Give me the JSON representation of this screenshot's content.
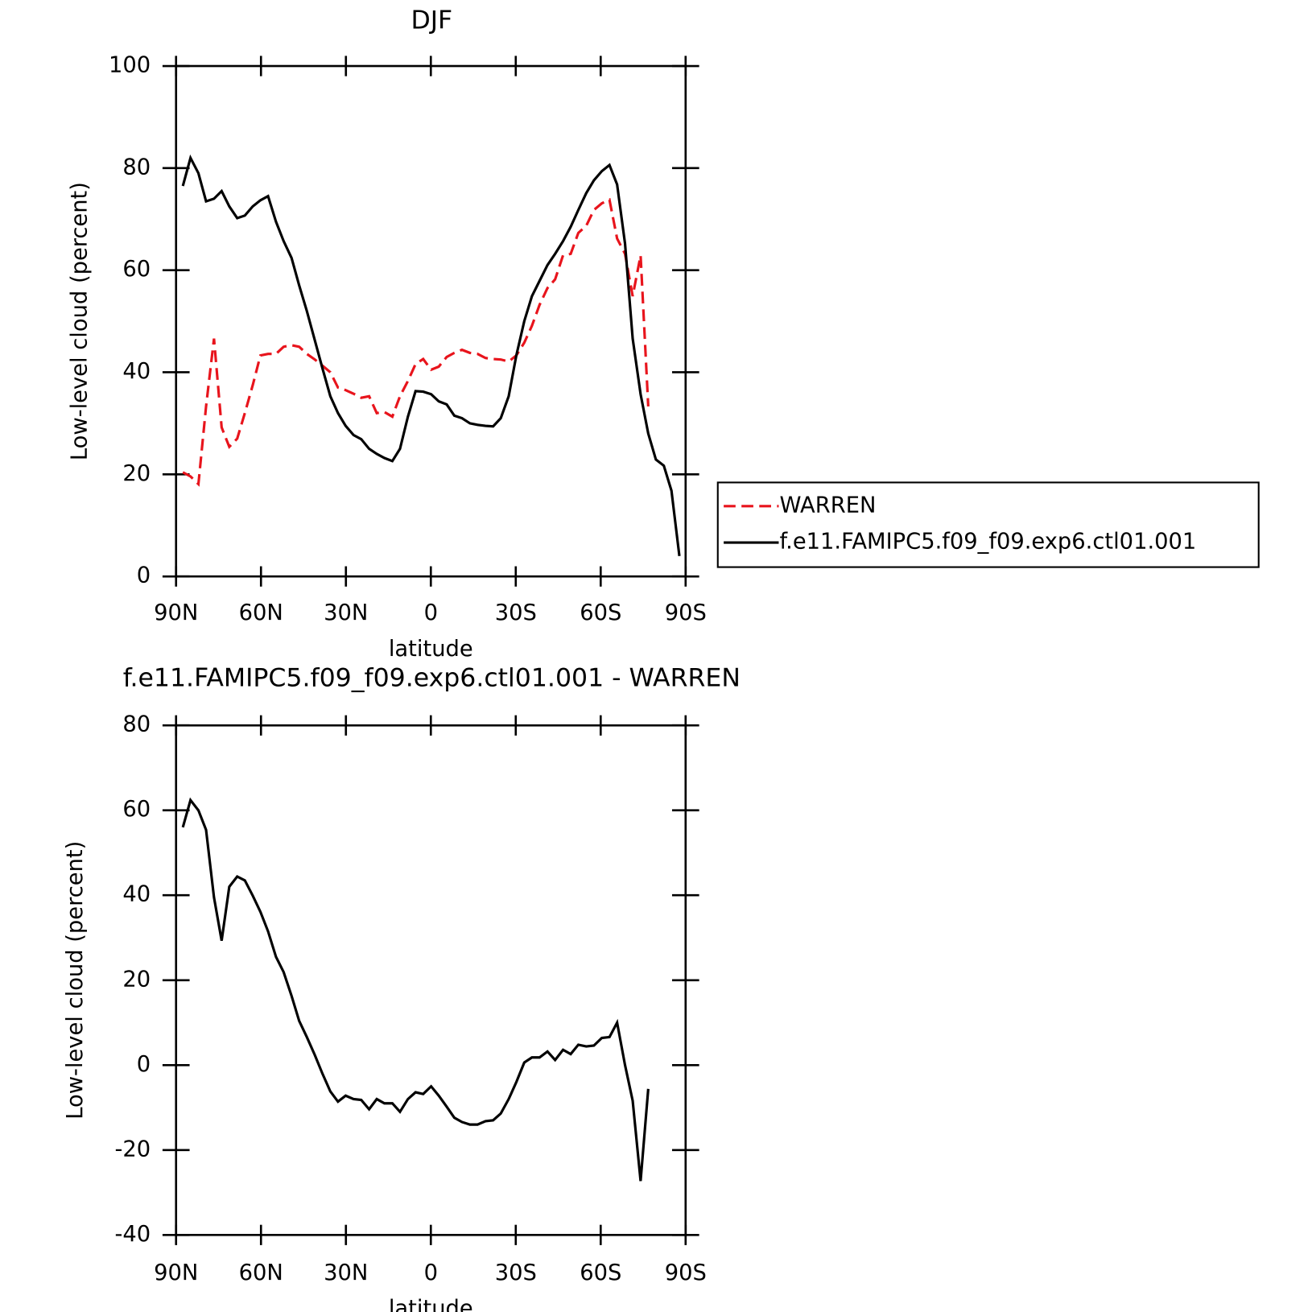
{
  "chart_data": [
    {
      "type": "line",
      "title": "DJF",
      "x_label": "latitude",
      "y_label": "Low-level cloud (percent)",
      "xlim": [
        90,
        -90
      ],
      "ylim": [
        0,
        100
      ],
      "xticks": [
        {
          "value": 90,
          "label": "90N"
        },
        {
          "value": 60,
          "label": "60N"
        },
        {
          "value": 30,
          "label": "30N"
        },
        0,
        {
          "value": -30,
          "label": "30S"
        },
        {
          "value": -60,
          "label": "60S"
        },
        {
          "value": -90,
          "label": "90S"
        }
      ],
      "yticks": [
        0,
        20,
        40,
        60,
        80,
        100
      ],
      "legend": "right",
      "x": [
        87.6,
        84.9,
        82.1,
        79.4,
        76.6,
        73.9,
        71.2,
        68.4,
        65.7,
        62.9,
        60.2,
        57.5,
        54.7,
        52.0,
        49.2,
        46.5,
        43.8,
        41.0,
        38.3,
        35.5,
        32.8,
        30.1,
        27.3,
        24.6,
        21.8,
        19.1,
        16.4,
        13.6,
        10.9,
        8.1,
        5.4,
        2.7,
        -0.1,
        -2.8,
        -5.6,
        -8.3,
        -11.0,
        -13.8,
        -16.5,
        -19.3,
        -22.0,
        -24.7,
        -27.5,
        -30.2,
        -33.0,
        -35.7,
        -38.4,
        -41.2,
        -43.9,
        -46.7,
        -49.4,
        -52.1,
        -54.9,
        -57.6,
        -60.4,
        -63.1,
        -65.8,
        -68.6,
        -71.3,
        -74.1,
        -76.8,
        -79.5,
        -82.3,
        -85.0,
        -87.8
      ],
      "series": [
        {
          "name": "WARREN",
          "color": "#e8141c",
          "linestyle": "dashed",
          "values": [
            20.4,
            19.6,
            18.1,
            33.3,
            46.6,
            29.2,
            25.4,
            27,
            32,
            37.5,
            43.3,
            43.6,
            43.6,
            45,
            45.3,
            45,
            43.6,
            42.5,
            41.3,
            40,
            37,
            36.5,
            35.8,
            35,
            35.3,
            32,
            32.2,
            31.3,
            35.3,
            38.3,
            41.6,
            42.6,
            40.5,
            41.1,
            43,
            43.8,
            44.4,
            43.8,
            43.6,
            42.8,
            42.6,
            42.5,
            42.1,
            43.3,
            45.8,
            49.1,
            53.2,
            56.5,
            58.2,
            62.9,
            63.2,
            67.3,
            68.7,
            71.8,
            73.1,
            73.8,
            66.2,
            63.2,
            54.9,
            62.9,
            33.3,
            null,
            null,
            null,
            null
          ]
        },
        {
          "name": "f.e11.FAMIPC5.f09_f09.exp6.ctl01.001",
          "color": "#000000",
          "linestyle": "solid",
          "values": [
            76.5,
            82,
            79,
            73.5,
            74,
            75.5,
            72.5,
            70.2,
            70.7,
            72.5,
            73.7,
            74.5,
            69.5,
            65.7,
            62.4,
            57,
            52,
            46.3,
            40.8,
            35.3,
            32,
            29.5,
            27.7,
            26.9,
            25,
            24,
            23.2,
            22.6,
            25,
            31.3,
            36.3,
            36.2,
            35.7,
            34.3,
            33.7,
            31.5,
            31,
            30,
            29.7,
            29.5,
            29.4,
            31,
            35.3,
            43.3,
            50,
            54.9,
            57.9,
            61,
            63.2,
            65.7,
            68.5,
            71.8,
            75.1,
            77.6,
            79.4,
            80.6,
            76.8,
            65.2,
            46.6,
            35.7,
            28,
            22.9,
            21.7,
            16.8,
            4
          ]
        }
      ]
    },
    {
      "type": "line",
      "title": "f.e11.FAMIPC5.f09_f09.exp6.ctl01.001 - WARREN",
      "x_label": "latitude",
      "y_label": "Low-level cloud (percent)",
      "xlim": [
        90,
        -90
      ],
      "ylim": [
        -40,
        80
      ],
      "xticks": [
        {
          "value": 90,
          "label": "90N"
        },
        {
          "value": 60,
          "label": "60N"
        },
        {
          "value": 30,
          "label": "30N"
        },
        0,
        {
          "value": -30,
          "label": "30S"
        },
        {
          "value": -60,
          "label": "60S"
        },
        {
          "value": -90,
          "label": "90S"
        }
      ],
      "yticks": [
        -40,
        -20,
        0,
        20,
        40,
        60,
        80
      ],
      "x": [
        87.6,
        84.9,
        82.1,
        79.4,
        76.6,
        73.9,
        71.2,
        68.4,
        65.7,
        62.9,
        60.2,
        57.5,
        54.7,
        52.0,
        49.2,
        46.5,
        43.8,
        41.0,
        38.3,
        35.5,
        32.8,
        30.1,
        27.3,
        24.6,
        21.8,
        19.1,
        16.4,
        13.6,
        10.9,
        8.1,
        5.4,
        2.7,
        -0.1,
        -2.8,
        -5.6,
        -8.3,
        -11.0,
        -13.8,
        -16.5,
        -19.3,
        -22.0,
        -24.7,
        -27.5,
        -30.2,
        -33.0,
        -35.7,
        -38.4,
        -41.2,
        -43.9,
        -46.7,
        -49.4,
        -52.1,
        -54.9,
        -57.6,
        -60.4,
        -63.1,
        -65.8,
        -68.6,
        -71.3,
        -74.1,
        -76.8,
        -79.5,
        -82.3,
        -85.0,
        -87.8
      ],
      "series": [
        {
          "color": "#000000",
          "linestyle": "solid",
          "values": [
            56,
            62.4,
            60,
            55.4,
            39.5,
            29.3,
            42,
            44.4,
            43.5,
            39.9,
            36.1,
            31.5,
            25.5,
            21.9,
            16.3,
            10.4,
            6.6,
            2.4,
            -2,
            -6.2,
            -8.6,
            -7.2,
            -8,
            -8.2,
            -10.4,
            -8,
            -9,
            -9,
            -11,
            -8,
            -6.4,
            -6.8,
            -5,
            -7.2,
            -9.8,
            -12.4,
            -13.4,
            -14,
            -14,
            -13.2,
            -13,
            -11.4,
            -8,
            -4,
            0.6,
            1.8,
            1.8,
            3.2,
            1.2,
            3.6,
            2.6,
            4.8,
            4.4,
            4.6,
            6.4,
            6.6,
            10,
            0,
            -8.4,
            -27.3,
            -5.6,
            null,
            null,
            null,
            null
          ]
        }
      ]
    }
  ]
}
